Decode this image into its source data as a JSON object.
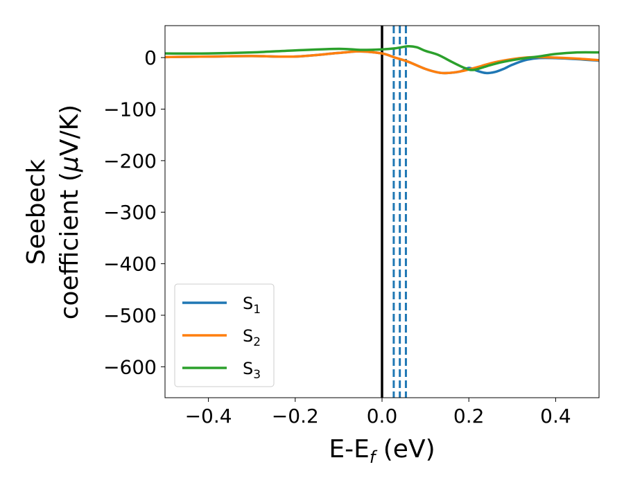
{
  "chart_data": {
    "type": "line",
    "title": "",
    "xlabel": {
      "main": "E-E",
      "sub": "f",
      "unit": " (eV)"
    },
    "ylabel": {
      "line1": "Seebeck",
      "line2": "coefficient  (",
      "mu": "μ",
      "unit": "V/K)"
    },
    "xlim": [
      -0.5,
      0.5
    ],
    "ylim": [
      -660,
      62
    ],
    "xticks": [
      -0.4,
      -0.2,
      0.0,
      0.2,
      0.4
    ],
    "xtick_labels": [
      "−0.4",
      "−0.2",
      "0.0",
      "0.2",
      "0.4"
    ],
    "yticks": [
      0,
      -100,
      -200,
      -300,
      -400,
      -500,
      -600
    ],
    "ytick_labels": [
      "0",
      "−100",
      "−200",
      "−300",
      "−400",
      "−500",
      "−600"
    ],
    "grid": false,
    "legend_position": "lower-left",
    "series": [
      {
        "name": "S",
        "sub": "1",
        "color": "#1f77b4",
        "x": [
          -0.5,
          -0.4,
          -0.3,
          -0.2,
          -0.1,
          -0.05,
          0,
          0.03,
          0.06,
          0.1,
          0.13,
          0.15,
          0.18,
          0.2,
          0.22,
          0.24,
          0.26,
          0.28,
          0.3,
          0.33,
          0.36,
          0.4,
          0.45,
          0.5
        ],
        "y": [
          1,
          2,
          3,
          2,
          9,
          12,
          8,
          0,
          -8,
          -22,
          -29,
          -30,
          -27,
          -20,
          -26,
          -30,
          -28,
          -22,
          -14,
          -5,
          -1,
          -1,
          -3,
          -6
        ]
      },
      {
        "name": "S",
        "sub": "2",
        "color": "#ff7f0e",
        "x": [
          -0.5,
          -0.4,
          -0.3,
          -0.2,
          -0.1,
          -0.05,
          0,
          0.03,
          0.06,
          0.1,
          0.13,
          0.15,
          0.18,
          0.2,
          0.23,
          0.26,
          0.3,
          0.33,
          0.36,
          0.4,
          0.45,
          0.5
        ],
        "y": [
          1,
          2,
          3,
          2,
          9,
          12,
          8,
          0,
          -8,
          -22,
          -29,
          -30,
          -27,
          -23,
          -16,
          -9,
          -3,
          0,
          1,
          0,
          -2,
          -5
        ]
      },
      {
        "name": "S",
        "sub": "3",
        "color": "#2ca02c",
        "x": [
          -0.5,
          -0.4,
          -0.3,
          -0.2,
          -0.1,
          -0.05,
          0,
          0.03,
          0.06,
          0.08,
          0.1,
          0.13,
          0.16,
          0.19,
          0.21,
          0.24,
          0.27,
          0.3,
          0.33,
          0.36,
          0.4,
          0.45,
          0.5
        ],
        "y": [
          8,
          8,
          10,
          14,
          17,
          15,
          16,
          18,
          22,
          20,
          13,
          5,
          -8,
          -20,
          -24,
          -17,
          -10,
          -5,
          -1,
          2,
          7,
          10,
          10
        ]
      }
    ],
    "vlines": [
      {
        "x": 0.0,
        "color": "#000000",
        "style": "solid"
      },
      {
        "x": 0.027,
        "color": "#1f77b4",
        "style": "dashed"
      },
      {
        "x": 0.041,
        "color": "#1f77b4",
        "style": "dashed"
      },
      {
        "x": 0.055,
        "color": "#1f77b4",
        "style": "dashed"
      }
    ]
  }
}
